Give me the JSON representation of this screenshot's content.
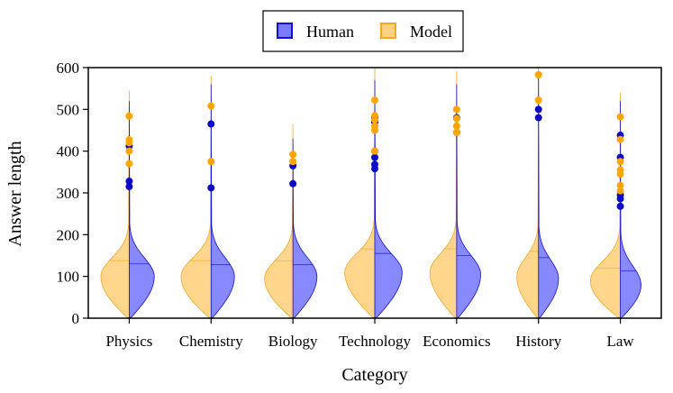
{
  "chart_data": {
    "type": "split-violin",
    "xlabel": "Category",
    "ylabel": "Answer length",
    "ylim": [
      0,
      600
    ],
    "yticks": [
      0,
      100,
      200,
      300,
      400,
      500,
      600
    ],
    "categories": [
      "Physics",
      "Chemistry",
      "Biology",
      "Technology",
      "Economics",
      "History",
      "Law"
    ],
    "legend": {
      "placement": "top-center",
      "entries": [
        "Human",
        "Model"
      ]
    },
    "colors": {
      "Human": {
        "fill": "#7b7bff",
        "edge": "#1010e0",
        "point": "#0a0ac8"
      },
      "Model": {
        "fill": "#ffd27f",
        "edge": "#f5a623",
        "point": "#ffa500"
      }
    },
    "series": [
      {
        "name": "Model",
        "side": "left",
        "medians": [
          138,
          138,
          137,
          166,
          166,
          160,
          120
        ],
        "modes": [
          100,
          100,
          95,
          110,
          110,
          100,
          90
        ],
        "widths": [
          0.85,
          0.9,
          0.85,
          0.9,
          0.8,
          0.65,
          0.9
        ],
        "max_extent": [
          545,
          580,
          465,
          600,
          592,
          600,
          540
        ],
        "outliers": [
          [
            484,
            427,
            420,
            400,
            370
          ],
          [
            508,
            375
          ],
          [
            392,
            375
          ],
          [
            522,
            485,
            475,
            460,
            450,
            400
          ],
          [
            500,
            478,
            460,
            445
          ],
          [
            583,
            522
          ],
          [
            482,
            428,
            375,
            355,
            345,
            318,
            305
          ]
        ]
      },
      {
        "name": "Human",
        "side": "right",
        "medians": [
          130,
          128,
          128,
          155,
          150,
          145,
          113
        ],
        "modes": [
          100,
          100,
          100,
          110,
          105,
          95,
          80
        ],
        "widths": [
          0.75,
          0.7,
          0.72,
          0.82,
          0.72,
          0.6,
          0.62
        ],
        "max_extent": [
          520,
          560,
          430,
          570,
          560,
          590,
          520
        ],
        "outliers": [
          [
            412,
            328,
            315
          ],
          [
            465,
            312
          ],
          [
            365,
            322
          ],
          [
            480,
            470,
            400,
            385,
            368,
            358
          ],
          [
            480,
            445
          ],
          [
            500,
            480
          ],
          [
            438,
            385,
            295,
            286,
            268
          ]
        ]
      }
    ]
  }
}
